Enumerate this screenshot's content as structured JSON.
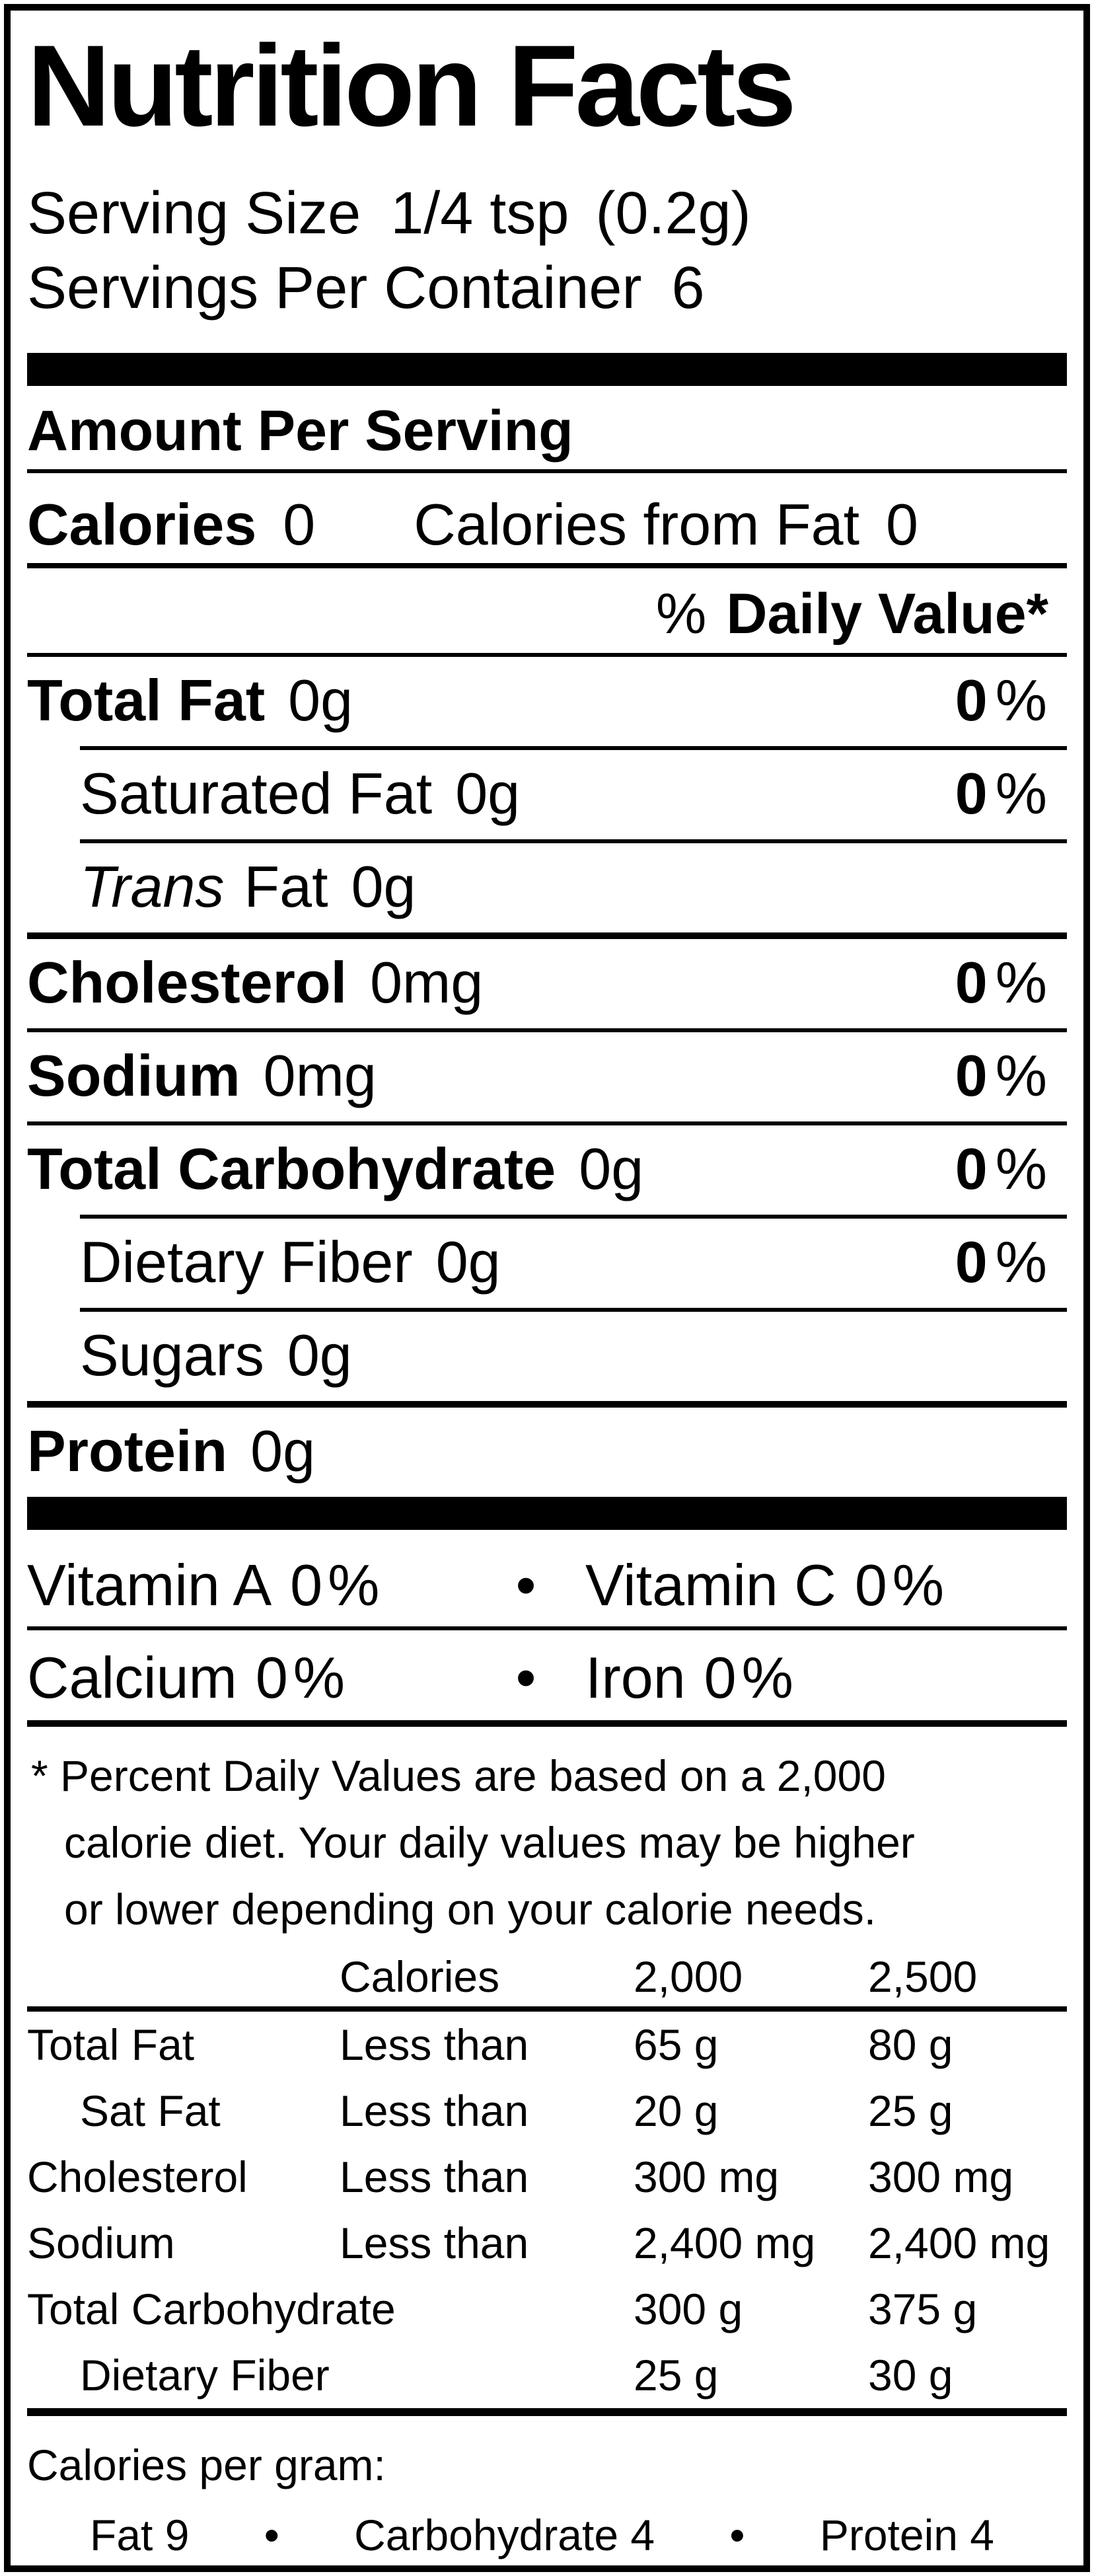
{
  "title": "Nutrition Facts",
  "serving": {
    "size_label": "Serving Size",
    "size_value": "1/4 tsp",
    "size_note": "(0.2g)",
    "per_container_label": "Servings Per Container",
    "per_container_value": "6"
  },
  "amount_per_serving": "Amount Per Serving",
  "calories": {
    "label": "Calories",
    "value": "0",
    "from_fat_label": "Calories from Fat",
    "from_fat_value": "0"
  },
  "daily_value_header": {
    "percent_sign": "%",
    "label": "Daily Value*"
  },
  "percent_sign": "%",
  "nutrients": [
    {
      "name": "Total Fat",
      "amount": "0g",
      "dv": "0"
    },
    {
      "name": "Saturated Fat",
      "amount": "0g",
      "dv": "0"
    },
    {
      "name_italic": "Trans",
      "name": "Fat",
      "amount": "0g"
    },
    {
      "name": "Cholesterol",
      "amount": "0mg",
      "dv": "0"
    },
    {
      "name": "Sodium",
      "amount": "0mg",
      "dv": "0"
    },
    {
      "name": "Total Carbohydrate",
      "amount": "0g",
      "dv": "0"
    },
    {
      "name": "Dietary Fiber",
      "amount": "0g",
      "dv": "0"
    },
    {
      "name": "Sugars",
      "amount": "0g"
    },
    {
      "name": "Protein",
      "amount": "0g"
    }
  ],
  "vitamins": {
    "bullet": "•",
    "vitamin_a": {
      "name": "Vitamin A",
      "value": "0"
    },
    "vitamin_c": {
      "name": "Vitamin C",
      "value": "0"
    },
    "calcium": {
      "name": "Calcium",
      "value": "0"
    },
    "iron": {
      "name": "Iron",
      "value": "0"
    }
  },
  "footnote": {
    "lines": [
      "* Percent Daily Values are based on a 2,000",
      "calorie diet. Your daily values may be higher",
      "or lower depending on your calorie needs."
    ]
  },
  "dv_table": {
    "header": {
      "col1": "Calories",
      "col2": "2,000",
      "col3": "2,500"
    },
    "rows": [
      {
        "label": "Total Fat",
        "qualifier": "Less than",
        "v2000": "65 g",
        "v2500": "80 g"
      },
      {
        "label": "Sat Fat",
        "qualifier": "Less than",
        "v2000": "20 g",
        "v2500": "25 g"
      },
      {
        "label": "Cholesterol",
        "qualifier": "Less than",
        "v2000": "300 mg",
        "v2500": "300 mg"
      },
      {
        "label": "Sodium",
        "qualifier": "Less than",
        "v2000": "2,400 mg",
        "v2500": "2,400 mg"
      },
      {
        "label": "Total Carbohydrate",
        "qualifier": "",
        "v2000": "300 g",
        "v2500": "375 g"
      },
      {
        "label": "Dietary Fiber",
        "qualifier": "",
        "v2000": "25 g",
        "v2500": "30 g"
      }
    ]
  },
  "calories_per_gram": {
    "label": "Calories per gram:",
    "bullet": "•",
    "items": [
      "Fat 9",
      "Carbohydrate 4",
      "Protein 4"
    ]
  },
  "colors": {
    "ink": "#000000",
    "paper": "#ffffff"
  }
}
